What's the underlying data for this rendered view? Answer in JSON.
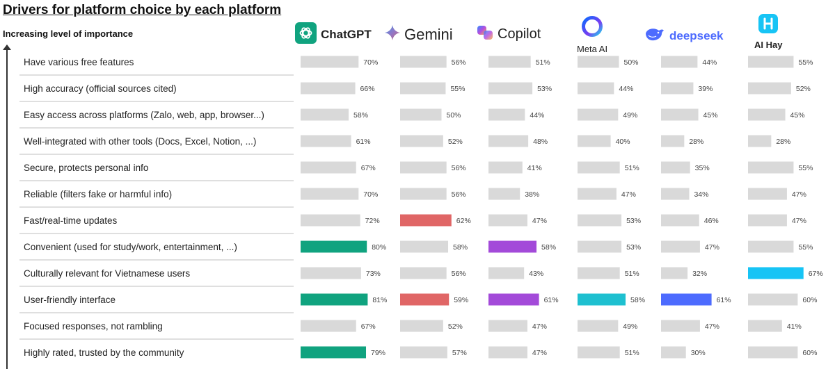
{
  "title": "Drivers for platform choice by each platform",
  "subtitle": "Increasing level of importance",
  "platforms": [
    {
      "name": "ChatGPT",
      "icon": "chatgpt-logo-icon",
      "color": "#10A37F"
    },
    {
      "name": "Gemini",
      "icon": "gemini-sparkle-icon",
      "color": "#E06666"
    },
    {
      "name": "Copilot",
      "icon": "copilot-logo-icon",
      "color": "#A34AD9"
    },
    {
      "name": "Meta AI",
      "icon": "meta-ai-ring-icon",
      "color": "#1EC0D0"
    },
    {
      "name": "deepseek",
      "icon": "deepseek-whale-icon",
      "color": "#4D6BFE"
    },
    {
      "name": "AI Hay",
      "icon": "ai-hay-logo-icon",
      "color": "#17C4F5"
    }
  ],
  "colors": {
    "neutral_bar": "#D9D9D9",
    "row_separator": "#BFBFBF",
    "arrow": "#333333"
  },
  "chart_data": {
    "type": "bar",
    "orientation": "horizontal",
    "title": "Drivers for platform choice by each platform",
    "ylabel": "Increasing level of importance",
    "categories": [
      "Have various free features",
      "High accuracy (official sources cited)",
      "Easy access across platforms (Zalo, web, app, browser...)",
      "Well-integrated with other tools (Docs, Excel, Notion, ...)",
      "Secure, protects personal info",
      "Reliable (filters fake or harmful info)",
      "Fast/real-time updates",
      "Convenient (used for study/work, entertainment, ...)",
      "Culturally relevant for Vietnamese users",
      "User-friendly interface",
      "Focused responses, not rambling",
      "Highly rated, trusted by the community"
    ],
    "series": [
      {
        "name": "ChatGPT",
        "values": [
          70,
          66,
          58,
          61,
          67,
          70,
          72,
          80,
          73,
          81,
          67,
          79
        ],
        "highlight": [
          7,
          9,
          11
        ]
      },
      {
        "name": "Gemini",
        "values": [
          56,
          55,
          50,
          52,
          56,
          56,
          62,
          58,
          56,
          59,
          52,
          57
        ],
        "highlight": [
          6,
          9
        ]
      },
      {
        "name": "Copilot",
        "values": [
          51,
          53,
          44,
          48,
          41,
          38,
          47,
          58,
          43,
          61,
          47,
          47
        ],
        "highlight": [
          7,
          9
        ]
      },
      {
        "name": "Meta AI",
        "values": [
          50,
          44,
          49,
          40,
          51,
          47,
          53,
          53,
          51,
          58,
          49,
          51
        ],
        "highlight": [
          9
        ]
      },
      {
        "name": "deepseek",
        "values": [
          44,
          39,
          45,
          28,
          35,
          34,
          46,
          47,
          32,
          61,
          47,
          30
        ],
        "highlight": [
          9
        ]
      },
      {
        "name": "AI Hay",
        "values": [
          55,
          52,
          45,
          28,
          55,
          47,
          47,
          55,
          67,
          60,
          41,
          60
        ],
        "highlight": [
          8
        ]
      }
    ],
    "value_format": "percent",
    "xlim": [
      0,
      100
    ],
    "grid": false,
    "legend": "top"
  }
}
